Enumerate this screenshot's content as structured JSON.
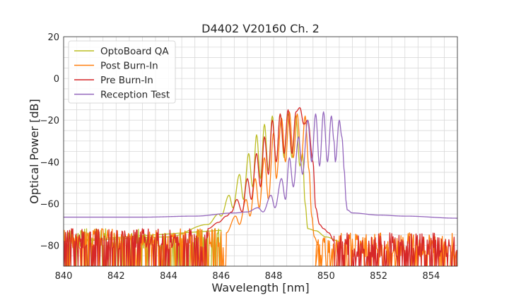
{
  "chart_data": {
    "type": "line",
    "title": "D4402 V20160 Ch. 2",
    "xlabel": "Wavelength [nm]",
    "ylabel": "Optical Power [dB]",
    "xlim": [
      840,
      855
    ],
    "ylim": [
      -90,
      20
    ],
    "x_ticks": [
      "840",
      "842",
      "844",
      "846",
      "848",
      "850",
      "852",
      "854"
    ],
    "y_ticks": [
      "20",
      "0",
      "−20",
      "−40",
      "−60",
      "−80"
    ],
    "grid": true,
    "legend_position": "top-left",
    "series": [
      {
        "name": "OptoBoard QA",
        "color": "#bcbd22",
        "noise_floor_range": [
          840,
          846.0
        ],
        "points": [
          [
            840.0,
            -78
          ],
          [
            844.0,
            -76
          ],
          [
            845.5,
            -70
          ],
          [
            845.9,
            -65
          ],
          [
            846.0,
            -66
          ],
          [
            846.3,
            -56
          ],
          [
            846.45,
            -62
          ],
          [
            846.7,
            -46
          ],
          [
            846.85,
            -58
          ],
          [
            847.05,
            -36
          ],
          [
            847.2,
            -52
          ],
          [
            847.35,
            -27
          ],
          [
            847.5,
            -48
          ],
          [
            847.65,
            -22
          ],
          [
            847.8,
            -44
          ],
          [
            847.95,
            -18
          ],
          [
            848.1,
            -40
          ],
          [
            848.25,
            -17
          ],
          [
            848.4,
            -38
          ],
          [
            848.55,
            -17
          ],
          [
            848.7,
            -38
          ],
          [
            848.85,
            -18
          ],
          [
            849.0,
            -42
          ],
          [
            849.1,
            -36
          ],
          [
            849.2,
            -60
          ],
          [
            849.3,
            -72
          ],
          [
            849.6,
            -73
          ],
          [
            850.0,
            -76
          ],
          [
            850.5,
            -78
          ]
        ]
      },
      {
        "name": "Post Burn-In",
        "color": "#ff7f0e",
        "noise_floor_range": [
          840,
          846.2
        ],
        "noise_floor_range_2": [
          849.6,
          855
        ],
        "points": [
          [
            846.2,
            -74
          ],
          [
            846.55,
            -66
          ],
          [
            846.7,
            -70
          ],
          [
            846.95,
            -58
          ],
          [
            847.1,
            -66
          ],
          [
            847.3,
            -48
          ],
          [
            847.45,
            -62
          ],
          [
            847.65,
            -38
          ],
          [
            847.8,
            -58
          ],
          [
            848.0,
            -26
          ],
          [
            848.1,
            -48
          ],
          [
            848.3,
            -19
          ],
          [
            848.45,
            -40
          ],
          [
            848.6,
            -16
          ],
          [
            848.75,
            -38
          ],
          [
            848.9,
            -17
          ],
          [
            849.05,
            -40
          ],
          [
            849.2,
            -18
          ],
          [
            849.35,
            -44
          ],
          [
            849.45,
            -66
          ],
          [
            849.55,
            -76
          ],
          [
            849.7,
            -80
          ]
        ]
      },
      {
        "name": "Pre Burn-In",
        "color": "#d62728",
        "noise_floor_range": [
          840,
          845.5
        ],
        "noise_floor_range_2": [
          850.3,
          855
        ],
        "points": [
          [
            845.5,
            -72
          ],
          [
            845.9,
            -69
          ],
          [
            846.2,
            -66
          ],
          [
            846.4,
            -64
          ],
          [
            846.6,
            -58
          ],
          [
            846.8,
            -64
          ],
          [
            847.0,
            -48
          ],
          [
            847.15,
            -58
          ],
          [
            847.35,
            -36
          ],
          [
            847.5,
            -52
          ],
          [
            847.65,
            -28
          ],
          [
            847.8,
            -46
          ],
          [
            847.95,
            -20
          ],
          [
            848.1,
            -40
          ],
          [
            848.25,
            -17
          ],
          [
            848.4,
            -36
          ],
          [
            848.55,
            -15
          ],
          [
            848.7,
            -36
          ],
          [
            848.85,
            -16
          ],
          [
            849.0,
            -14
          ],
          [
            849.15,
            -22
          ],
          [
            849.3,
            -20
          ],
          [
            849.5,
            -40
          ],
          [
            849.6,
            -62
          ],
          [
            849.75,
            -70
          ],
          [
            849.9,
            -72
          ],
          [
            850.1,
            -74
          ],
          [
            850.3,
            -78
          ]
        ]
      },
      {
        "name": "Reception Test",
        "color": "#9467bd",
        "points": [
          [
            840.0,
            -66.5
          ],
          [
            843.0,
            -66.5
          ],
          [
            845.0,
            -66.0
          ],
          [
            846.5,
            -64.5
          ],
          [
            847.0,
            -64
          ],
          [
            847.4,
            -62
          ],
          [
            847.6,
            -64
          ],
          [
            847.9,
            -56
          ],
          [
            848.05,
            -62
          ],
          [
            848.3,
            -48
          ],
          [
            848.45,
            -58
          ],
          [
            848.6,
            -38
          ],
          [
            848.75,
            -52
          ],
          [
            848.95,
            -28
          ],
          [
            849.1,
            -46
          ],
          [
            849.3,
            -20
          ],
          [
            849.45,
            -40
          ],
          [
            849.6,
            -17
          ],
          [
            849.75,
            -42
          ],
          [
            849.9,
            -16
          ],
          [
            850.05,
            -40
          ],
          [
            850.2,
            -18
          ],
          [
            850.3,
            -30
          ],
          [
            850.35,
            -40
          ],
          [
            850.5,
            -20
          ],
          [
            850.6,
            -28
          ],
          [
            850.7,
            -45
          ],
          [
            850.75,
            -58
          ],
          [
            850.8,
            -63
          ],
          [
            851.0,
            -64.5
          ],
          [
            852.0,
            -65.5
          ],
          [
            853.0,
            -66
          ],
          [
            855.0,
            -67
          ]
        ]
      }
    ]
  }
}
